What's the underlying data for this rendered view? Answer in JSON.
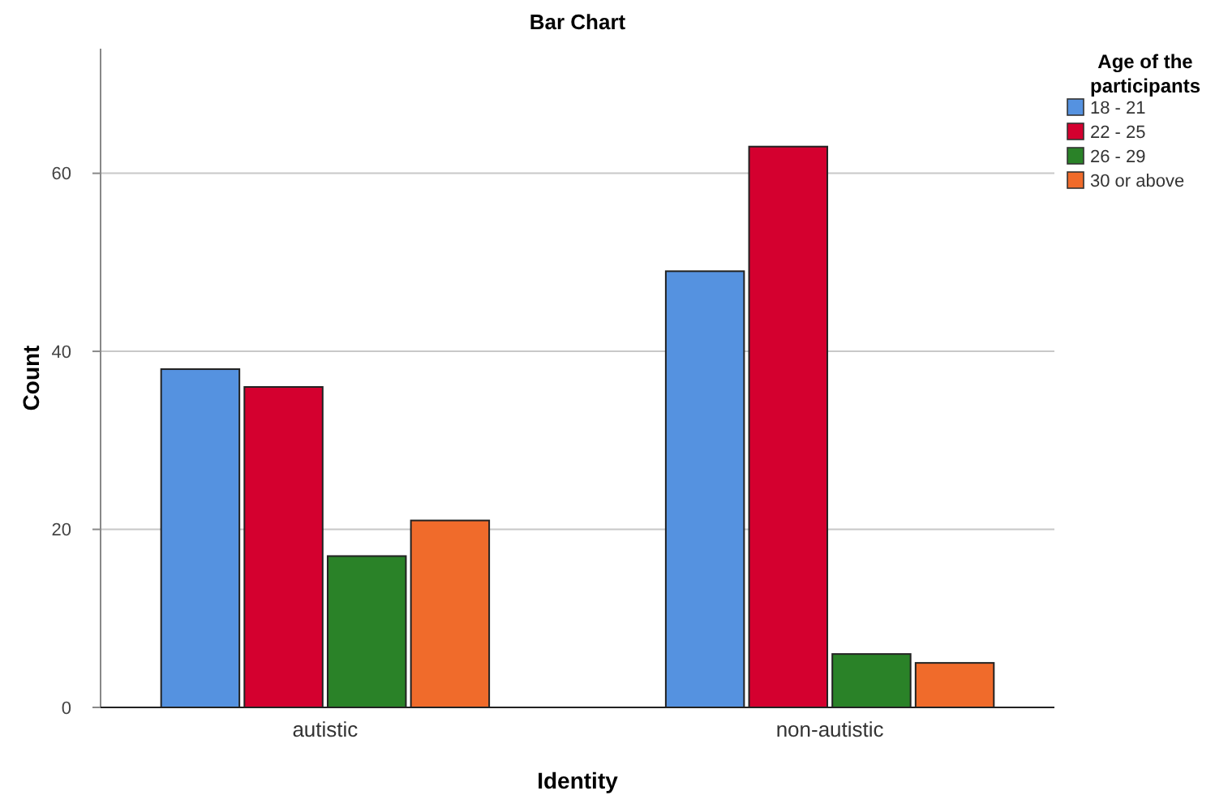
{
  "chart_data": {
    "type": "bar",
    "title": "Bar Chart",
    "xlabel": "Identity",
    "ylabel": "Count",
    "legend_title": "Age of the participants",
    "categories": [
      "autistic",
      "non-autistic"
    ],
    "series": [
      {
        "name": "18 - 21",
        "color": "#5592e0",
        "values": [
          38,
          49
        ]
      },
      {
        "name": "22 - 25",
        "color": "#d4002f",
        "values": [
          36,
          63
        ]
      },
      {
        "name": "26 - 29",
        "color": "#2a8228",
        "values": [
          17,
          6
        ]
      },
      {
        "name": "30 or above",
        "color": "#f06b2b",
        "values": [
          21,
          5
        ]
      }
    ],
    "ylim": [
      0,
      74
    ],
    "yticks": [
      0,
      20,
      40,
      60
    ],
    "grid": "y",
    "legend": "top right"
  }
}
